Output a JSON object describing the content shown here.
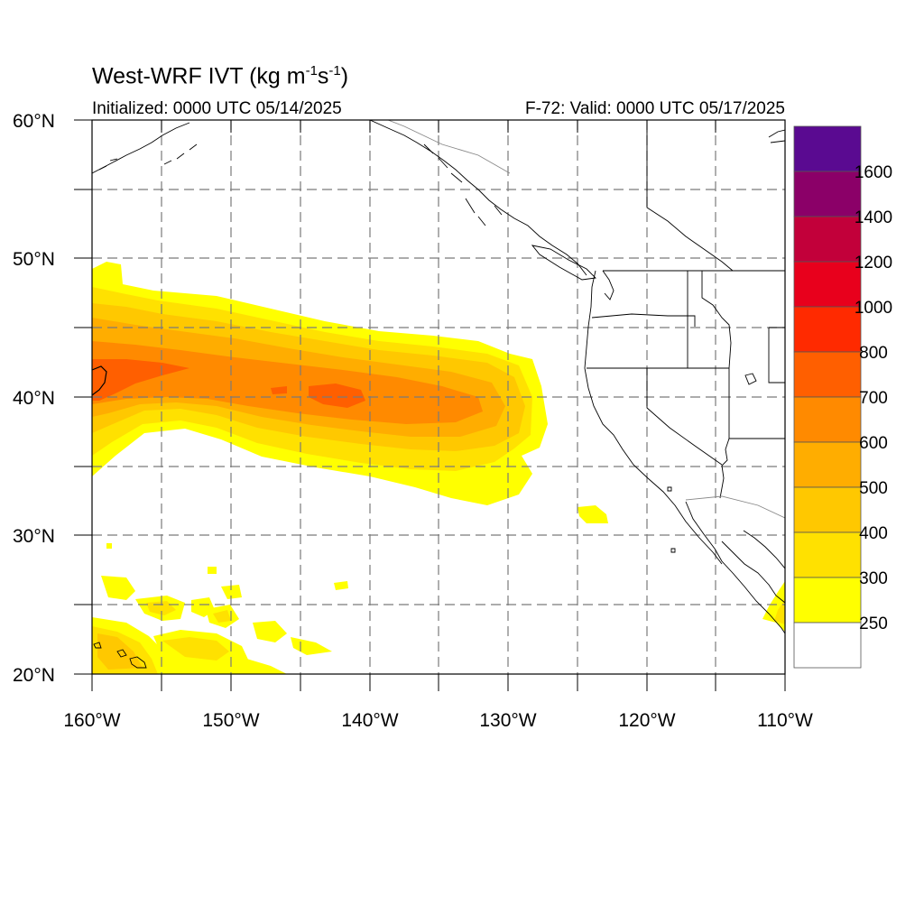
{
  "title": {
    "main": "West-WRF IVT (kg m",
    "sup1": "-1",
    "mid": "s",
    "sup2": "-1",
    "end": ")"
  },
  "subtitle_left": "Initialized: 0000 UTC 05/14/2025",
  "subtitle_right": "F-72: Valid: 0000 UTC 05/17/2025",
  "map": {
    "lat_labels": [
      "60°N",
      "50°N",
      "40°N",
      "30°N",
      "20°N"
    ],
    "lon_labels": [
      "160°W",
      "150°W",
      "140°W",
      "130°W",
      "120°W",
      "110°W"
    ],
    "lat_range": [
      20,
      60
    ],
    "lon_range": [
      -160,
      -110
    ],
    "gridlines": "dashed",
    "ivt_max_region": "near 160°W, 41°N"
  },
  "colorbar": {
    "labels": [
      "1600",
      "1400",
      "1200",
      "1000",
      "800",
      "700",
      "600",
      "500",
      "400",
      "300",
      "250"
    ],
    "colors_top_to_bottom": [
      "#5a0a91",
      "#8b0068",
      "#c2003a",
      "#e8001c",
      "#ff2a00",
      "#ff5f00",
      "#ff8a00",
      "#ffad00",
      "#ffc800",
      "#ffe100",
      "#ffff00",
      "#ffffff"
    ]
  }
}
